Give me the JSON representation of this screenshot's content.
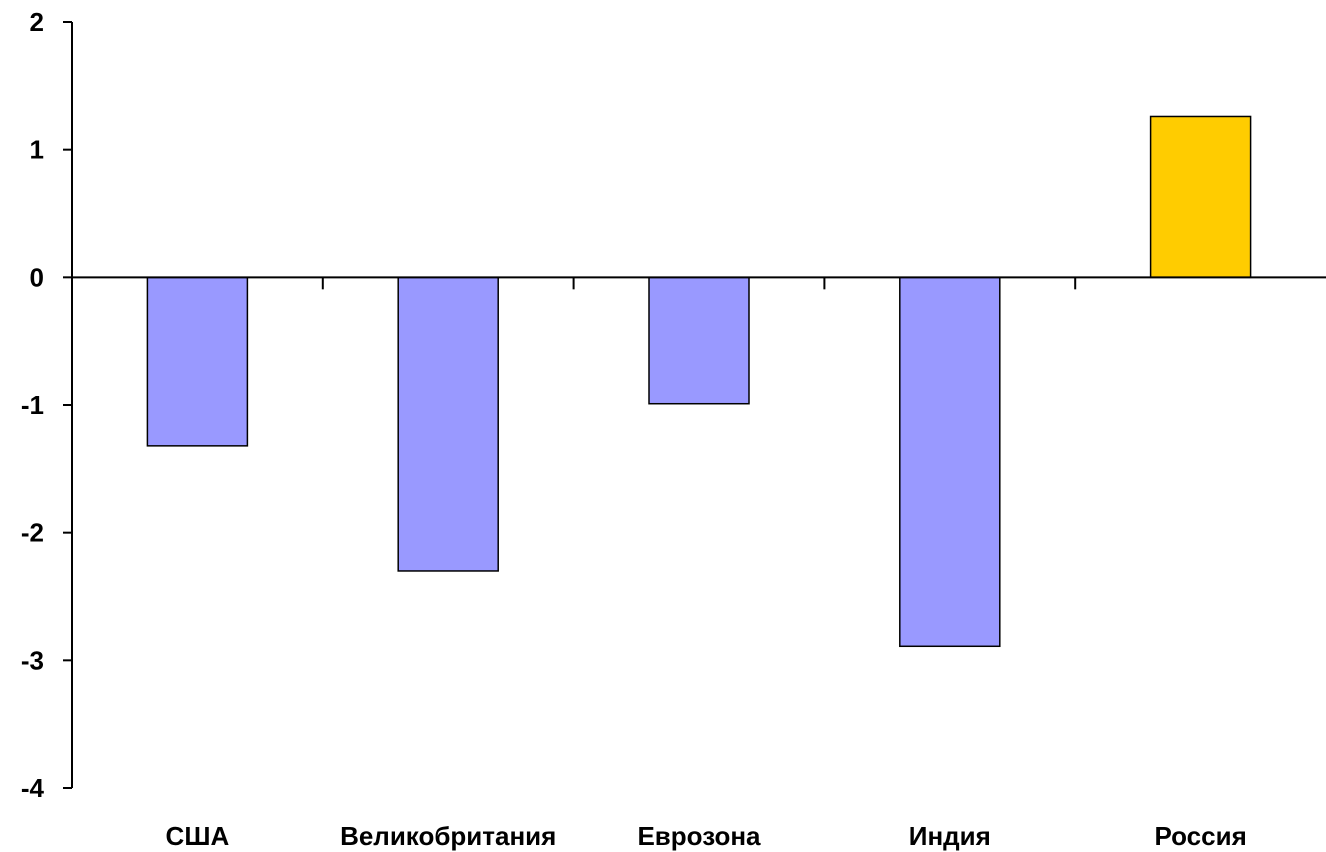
{
  "chart_data": {
    "type": "bar",
    "title": "",
    "xlabel": "",
    "ylabel": "",
    "categories": [
      "США",
      "Великобритания",
      "Еврозона",
      "Индия",
      "Россия"
    ],
    "values": [
      -1.32,
      -2.3,
      -0.99,
      -2.89,
      1.26
    ],
    "ylim": [
      -4,
      2
    ],
    "yticks": [
      "2",
      "1",
      "0",
      "-1",
      "-2",
      "-3",
      "-4"
    ],
    "grid": false,
    "legend": "none",
    "colors": {
      "default_bar": "#9999ff",
      "highlight_bar": "#ffcc00",
      "axis": "#000000"
    },
    "highlight_category": "Россия"
  }
}
